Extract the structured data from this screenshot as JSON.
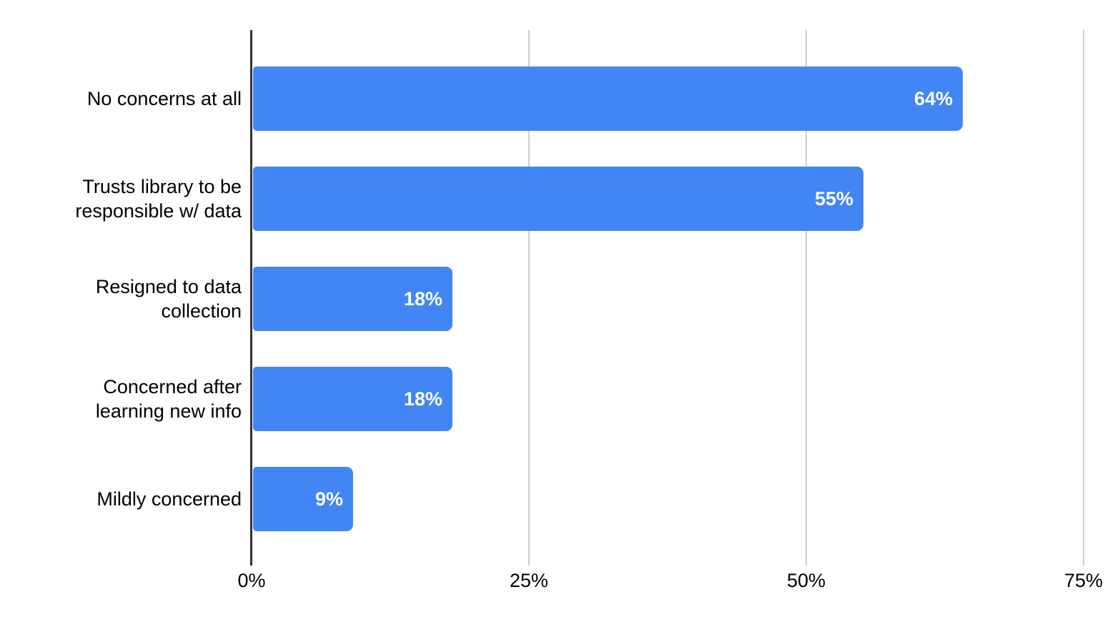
{
  "chart_data": {
    "type": "bar",
    "orientation": "horizontal",
    "title": "",
    "xlabel": "",
    "ylabel": "",
    "legend_position": "none",
    "grid": "vertical-gridlines",
    "xlim": [
      0,
      75
    ],
    "categories": [
      "No concerns at all",
      "Trusts library to be\nresponsible w/ data",
      "Resigned to data\ncollection",
      "Concerned after\nlearning new info",
      "Mildly concerned"
    ],
    "values": [
      64,
      55,
      18,
      18,
      9
    ],
    "value_labels": [
      "64%",
      "55%",
      "18%",
      "18%",
      "9%"
    ],
    "x_ticks": [
      {
        "label": "0%",
        "value": 0
      },
      {
        "label": "25%",
        "value": 25
      },
      {
        "label": "50%",
        "value": 50
      },
      {
        "label": "75%",
        "value": 75
      }
    ],
    "colors": {
      "bar": "#4285f4",
      "value_label": "#ffffff",
      "axis_line": "#333333",
      "gridline": "#cccccc",
      "text": "#000000",
      "background": "#ffffff"
    }
  }
}
